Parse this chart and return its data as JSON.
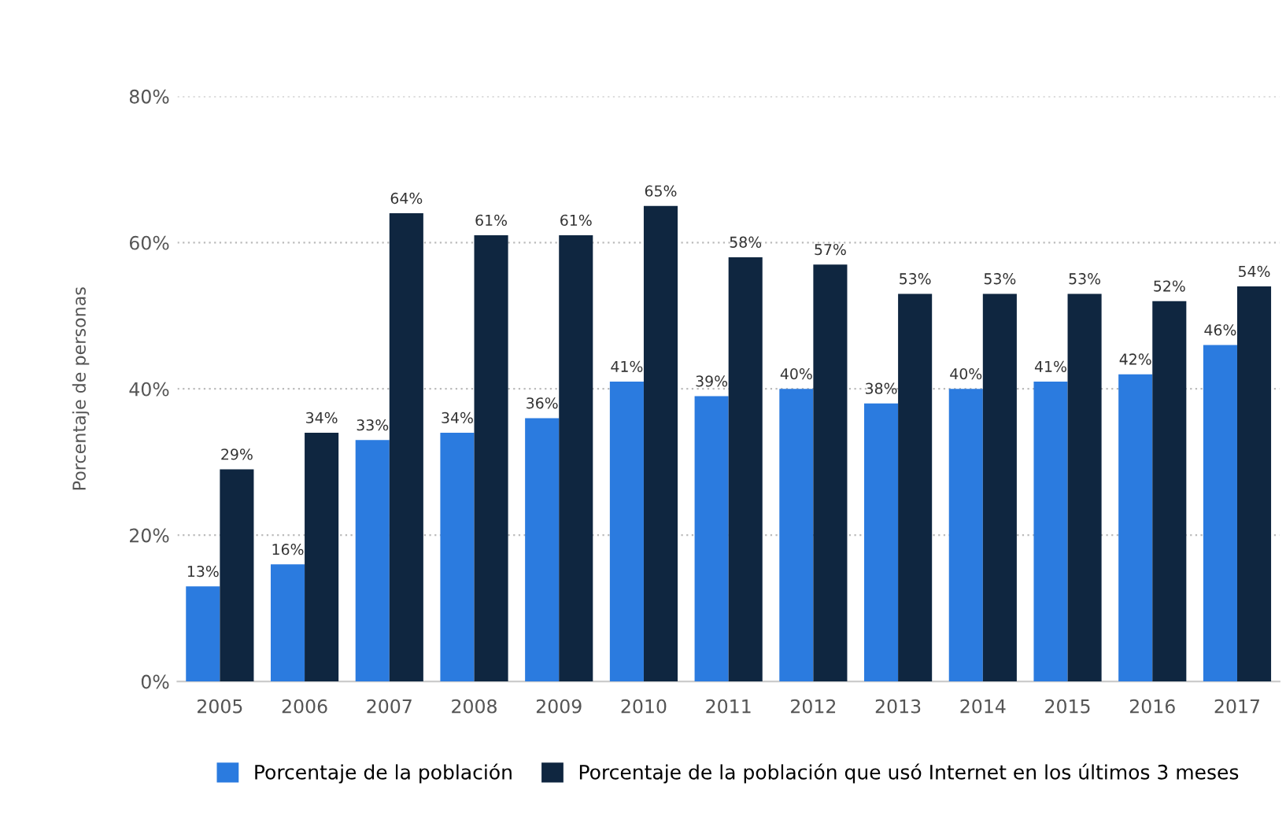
{
  "chart_data": {
    "type": "bar",
    "ylabel": "Porcentaje de personas",
    "categories": [
      "2005",
      "2006",
      "2007",
      "2008",
      "2009",
      "2010",
      "2011",
      "2012",
      "2013",
      "2014",
      "2015",
      "2016",
      "2017"
    ],
    "series": [
      {
        "name": "Porcentaje de la población",
        "color": "#2b7bdf",
        "values": [
          13,
          16,
          33,
          34,
          36,
          41,
          39,
          40,
          38,
          40,
          41,
          42,
          46
        ],
        "value_labels": [
          "13%",
          "16%",
          "33%",
          "34%",
          "36%",
          "41%",
          "39%",
          "40%",
          "38%",
          "40%",
          "41%",
          "42%",
          "46%"
        ]
      },
      {
        "name": "Porcentaje de la población que usó Internet en los últimos 3 meses",
        "color": "#0f2640",
        "values": [
          29,
          34,
          64,
          61,
          61,
          65,
          58,
          57,
          53,
          53,
          53,
          52,
          54
        ],
        "value_labels": [
          "29%",
          "34%",
          "64%",
          "61%",
          "61%",
          "65%",
          "58%",
          "57%",
          "53%",
          "53%",
          "53%",
          "52%",
          "54%"
        ]
      }
    ],
    "ylim": [
      0,
      80
    ],
    "yticks": [
      {
        "value": 0,
        "label": "0%"
      },
      {
        "value": 20,
        "label": "20%"
      },
      {
        "value": 40,
        "label": "40%"
      },
      {
        "value": 60,
        "label": "60%"
      },
      {
        "value": 80,
        "label": "80%"
      }
    ],
    "grid": "y",
    "legend": "bottom"
  }
}
